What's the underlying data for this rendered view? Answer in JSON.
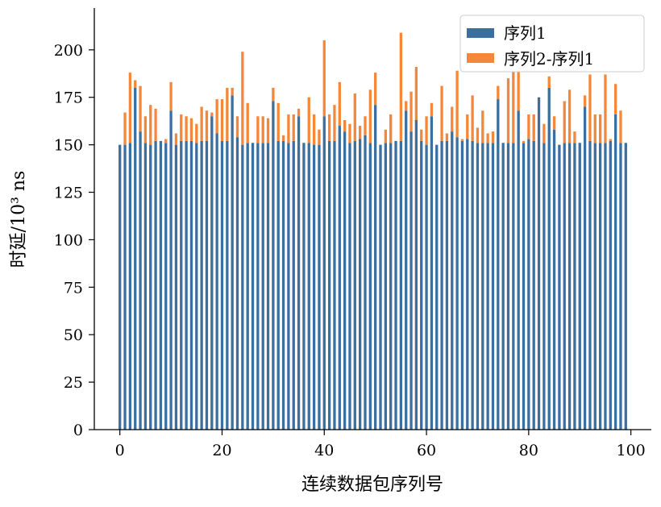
{
  "chart_data": {
    "type": "bar",
    "stacked": true,
    "xlabel": "连续数据包序列号",
    "ylabel": "时延/10³ ns",
    "xlim": [
      -5,
      104
    ],
    "ylim": [
      0,
      222
    ],
    "xticks": [
      0,
      20,
      40,
      60,
      80,
      100
    ],
    "yticks": [
      0,
      25,
      50,
      75,
      100,
      125,
      150,
      175,
      200
    ],
    "grid": false,
    "legend": "top-right",
    "x": [
      0,
      1,
      2,
      3,
      4,
      5,
      6,
      7,
      8,
      9,
      10,
      11,
      12,
      13,
      14,
      15,
      16,
      17,
      18,
      19,
      20,
      21,
      22,
      23,
      24,
      25,
      26,
      27,
      28,
      29,
      30,
      31,
      32,
      33,
      34,
      35,
      36,
      37,
      38,
      39,
      40,
      41,
      42,
      43,
      44,
      45,
      46,
      47,
      48,
      49,
      50,
      51,
      52,
      53,
      54,
      55,
      56,
      57,
      58,
      59,
      60,
      61,
      62,
      63,
      64,
      65,
      66,
      67,
      68,
      69,
      70,
      71,
      72,
      73,
      74,
      75,
      76,
      77,
      78,
      79,
      80,
      81,
      82,
      83,
      84,
      85,
      86,
      87,
      88,
      89,
      90,
      91,
      92,
      93,
      94,
      95,
      96,
      97,
      98,
      99
    ],
    "series": [
      {
        "name": "序列1",
        "color": "#3a6f9f",
        "values": [
          150,
          150,
          151,
          180,
          157,
          151,
          150,
          152,
          152,
          151,
          168,
          150,
          152,
          152,
          152,
          151,
          152,
          152,
          165,
          156,
          152,
          152,
          176,
          154,
          150,
          151,
          151,
          151,
          151,
          151,
          173,
          152,
          152,
          151,
          152,
          165,
          151,
          151,
          150,
          150,
          165,
          152,
          152,
          160,
          157,
          151,
          152,
          153,
          155,
          151,
          171,
          150,
          151,
          151,
          152,
          152,
          168,
          157,
          163,
          152,
          150,
          165,
          150,
          152,
          152,
          157,
          154,
          152,
          153,
          152,
          151,
          151,
          151,
          151,
          174,
          151,
          151,
          151,
          168,
          151,
          153,
          152,
          175,
          151,
          180,
          158,
          150,
          151,
          151,
          151,
          151,
          170,
          152,
          151,
          151,
          151,
          152,
          166,
          151,
          151
        ]
      },
      {
        "name": "序列2-序列1",
        "color": "#f5873a",
        "values": [
          0,
          17,
          37,
          4,
          24,
          14,
          21,
          17,
          0,
          2,
          15,
          6,
          14,
          13,
          12,
          10,
          18,
          16,
          2,
          18,
          22,
          28,
          4,
          11,
          49,
          21,
          0,
          14,
          14,
          13,
          7,
          20,
          3,
          15,
          14,
          4,
          0,
          24,
          16,
          8,
          40,
          14,
          19,
          23,
          6,
          10,
          25,
          7,
          10,
          28,
          17,
          0,
          7,
          15,
          0,
          57,
          5,
          21,
          28,
          6,
          15,
          7,
          0,
          29,
          4,
          13,
          35,
          1,
          13,
          24,
          8,
          17,
          5,
          6,
          7,
          0,
          34,
          49,
          23,
          1,
          13,
          14,
          0,
          10,
          6,
          7,
          0,
          22,
          28,
          6,
          0,
          6,
          35,
          15,
          15,
          36,
          1,
          16,
          17,
          0
        ]
      }
    ]
  }
}
